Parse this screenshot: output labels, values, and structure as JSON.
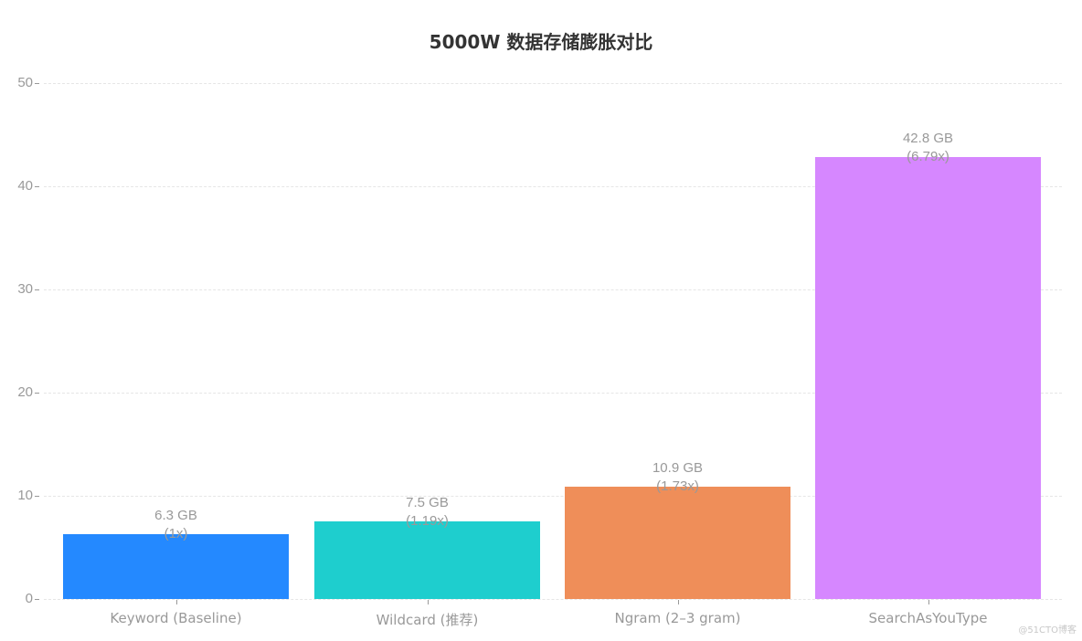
{
  "chart_data": {
    "type": "bar",
    "title": "5000W 数据存储膨胀对比",
    "xlabel": "",
    "ylabel": "",
    "ylim": [
      0,
      50
    ],
    "yticks": [
      0,
      10,
      20,
      30,
      40,
      50
    ],
    "grid": true,
    "legend": null,
    "categories": [
      "Keyword (Baseline)",
      "Wildcard (推荐)",
      "Ngram (2–3 gram)",
      "SearchAsYouType"
    ],
    "values": [
      6.3,
      7.5,
      10.9,
      42.8
    ],
    "units": "GB",
    "data_labels": [
      {
        "size": "6.3 GB",
        "ratio": "(1x)"
      },
      {
        "size": "7.5 GB",
        "ratio": "(1.19x)"
      },
      {
        "size": "10.9 GB",
        "ratio": "(1.73x)"
      },
      {
        "size": "42.8 GB",
        "ratio": "(6.79x)"
      }
    ],
    "colors": [
      "#2489ff",
      "#1ecece",
      "#ef8e59",
      "#d687ff"
    ]
  },
  "ytick_labels": [
    "0",
    "10",
    "20",
    "30",
    "40",
    "50"
  ],
  "watermark": "@51CTO博客"
}
